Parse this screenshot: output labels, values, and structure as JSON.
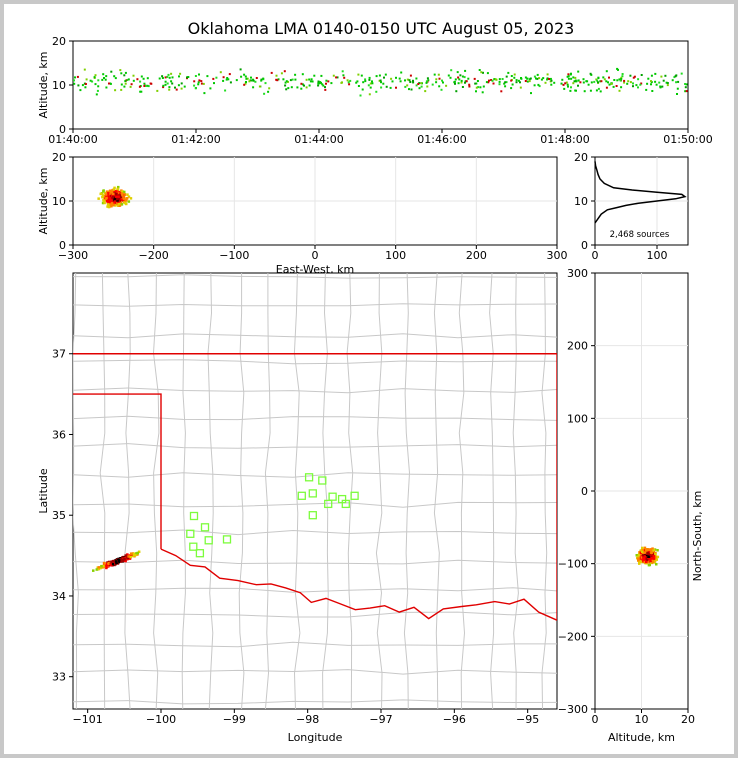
{
  "title": "Oklahoma LMA 0140-0150 UTC August 05, 2023",
  "colors": {
    "map_border": "#e00000",
    "county_lines": "#c8c8c8",
    "stations": "#7cfc3c",
    "source_green": "#00c800",
    "source_red": "#cc0000"
  },
  "chart_data": [
    {
      "type": "scatter",
      "id": "time_height",
      "ylabel": "Altitude, km",
      "ylim": [
        0,
        20
      ],
      "yticks": [
        "0",
        "10",
        "20"
      ],
      "xticks": [
        "01:40:00",
        "01:42:00",
        "01:44:00",
        "01:46:00",
        "01:48:00",
        "01:50:00"
      ],
      "xlim_min": [
        0,
        10
      ],
      "note_units": "x in minutes after 01:40:00 UTC"
    },
    {
      "type": "scatter",
      "id": "ew_height",
      "xlabel": "East-West, km",
      "ylabel": "Altitude, km",
      "xlim": [
        -300,
        300
      ],
      "ylim": [
        0,
        20
      ],
      "xticks": [
        "−300",
        "−200",
        "−100",
        "0",
        "100",
        "200",
        "300"
      ],
      "yticks": [
        "0",
        "10",
        "20"
      ],
      "center": [
        -250,
        11
      ]
    },
    {
      "type": "line",
      "id": "height_histogram",
      "xlim": [
        0,
        150
      ],
      "ylim": [
        0,
        20
      ],
      "xticks": [
        "0",
        "100"
      ],
      "yticks": [
        "0",
        "10",
        "20"
      ],
      "annotation": "2,468 sources",
      "profile": [
        [
          0,
          5
        ],
        [
          5,
          6
        ],
        [
          10,
          7
        ],
        [
          20,
          8
        ],
        [
          35,
          8.5
        ],
        [
          50,
          9
        ],
        [
          70,
          9.5
        ],
        [
          100,
          10
        ],
        [
          130,
          10.5
        ],
        [
          145,
          11
        ],
        [
          140,
          11.5
        ],
        [
          100,
          12
        ],
        [
          60,
          12.5
        ],
        [
          30,
          13
        ],
        [
          15,
          14
        ],
        [
          8,
          15
        ],
        [
          5,
          16
        ],
        [
          3,
          17
        ],
        [
          1,
          18
        ],
        [
          0,
          19
        ]
      ]
    },
    {
      "type": "scatter",
      "id": "plan_map",
      "xlabel": "Longitude",
      "ylabel": "Latitude",
      "xlim": [
        -101.2,
        -94.6
      ],
      "ylim": [
        32.6,
        38.0
      ],
      "xticks": [
        "−101",
        "−100",
        "−99",
        "−98",
        "−97",
        "−96",
        "−95"
      ],
      "yticks": [
        "33",
        "34",
        "35",
        "36",
        "37"
      ],
      "stations": [
        [
          -97.98,
          35.47
        ],
        [
          -97.8,
          35.43
        ],
        [
          -98.08,
          35.24
        ],
        [
          -97.93,
          35.27
        ],
        [
          -97.66,
          35.23
        ],
        [
          -97.36,
          35.24
        ],
        [
          -97.53,
          35.2
        ],
        [
          -97.72,
          35.14
        ],
        [
          -97.48,
          35.14
        ],
        [
          -97.93,
          35.0
        ],
        [
          -99.55,
          34.99
        ],
        [
          -99.4,
          34.85
        ],
        [
          -99.6,
          34.77
        ],
        [
          -99.35,
          34.69
        ],
        [
          -99.1,
          34.7
        ],
        [
          -99.56,
          34.61
        ],
        [
          -99.47,
          34.53
        ]
      ],
      "storm_center": [
        -100.6,
        34.45
      ]
    },
    {
      "type": "scatter",
      "id": "ns_height",
      "xlabel": "Altitude, km",
      "ylabel": "North-South, km",
      "xlim": [
        0,
        20
      ],
      "ylim": [
        -300,
        300
      ],
      "xticks": [
        "0",
        "10",
        "20"
      ],
      "yticks": [
        "−300",
        "−200",
        "−100",
        "0",
        "100",
        "200",
        "300"
      ],
      "center": [
        11,
        -88
      ]
    }
  ]
}
